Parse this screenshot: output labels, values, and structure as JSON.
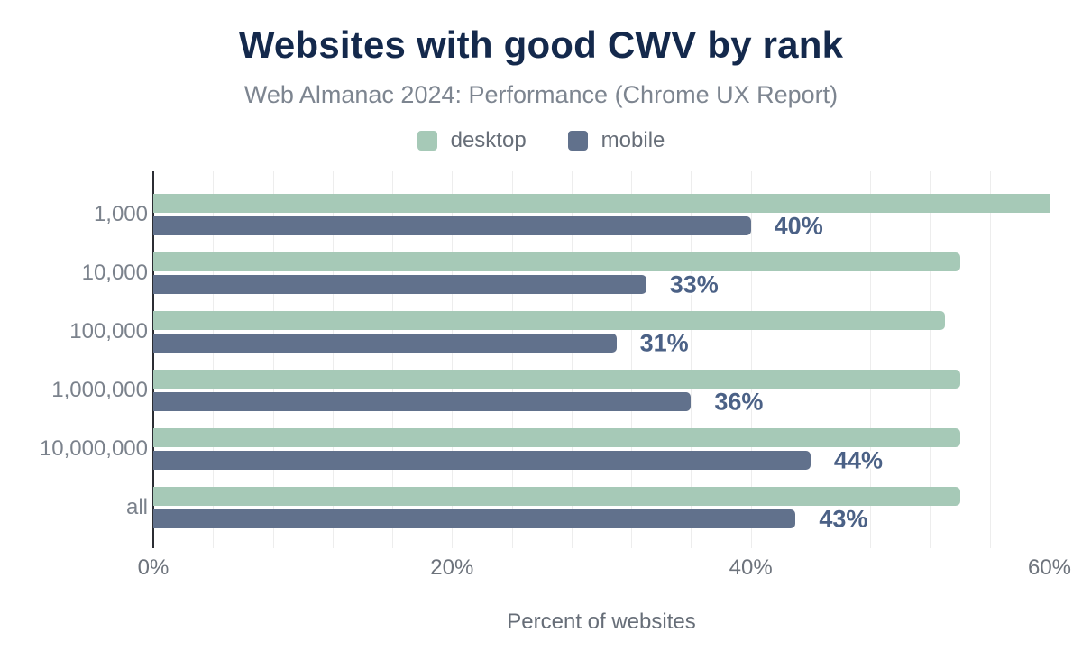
{
  "header": {
    "title": "Websites with good CWV by rank",
    "subtitle": "Web Almanac 2024: Performance (Chrome UX Report)"
  },
  "legend": [
    {
      "label": "desktop",
      "color": "#a6c9b7"
    },
    {
      "label": "mobile",
      "color": "#61718c"
    }
  ],
  "chart_data": {
    "type": "bar",
    "orientation": "horizontal",
    "title": "Websites with good CWV by rank",
    "subtitle": "Web Almanac 2024: Performance (Chrome UX Report)",
    "categories": [
      "1,000",
      "10,000",
      "100,000",
      "1,000,000",
      "10,000,000",
      "all"
    ],
    "series": [
      {
        "name": "desktop",
        "color": "#a6c9b7",
        "values": [
          60,
          54,
          53,
          54,
          54,
          54
        ]
      },
      {
        "name": "mobile",
        "color": "#61718c",
        "values": [
          40,
          33,
          31,
          36,
          44,
          43
        ],
        "labels": [
          "40%",
          "33%",
          "31%",
          "36%",
          "44%",
          "43%"
        ]
      }
    ],
    "xlabel": "Percent of websites",
    "xlim": [
      0,
      60
    ],
    "xticks": [
      {
        "value": 0,
        "label": "0%"
      },
      {
        "value": 20,
        "label": "20%"
      },
      {
        "value": 40,
        "label": "40%"
      },
      {
        "value": 60,
        "label": "60%"
      }
    ],
    "grid": {
      "on": true,
      "step_percent": 4,
      "color": "#ededed"
    },
    "legend_position": "top",
    "data_label_series": "mobile",
    "data_label_color": "#4b6186",
    "axis_line_color": "#2b2d33"
  }
}
